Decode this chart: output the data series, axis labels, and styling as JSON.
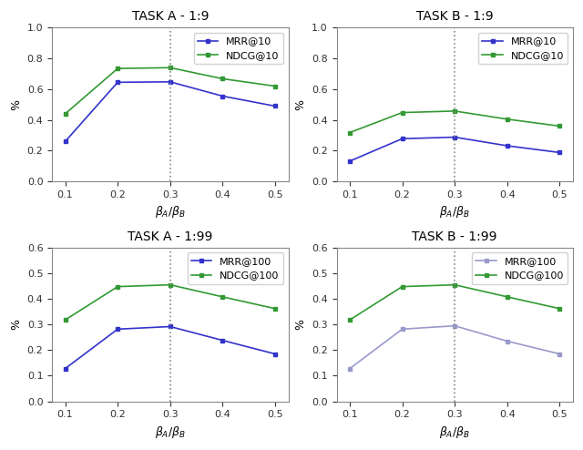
{
  "x": [
    0.1,
    0.2,
    0.3,
    0.4,
    0.5
  ],
  "vline_x": 0.3,
  "subplots": [
    {
      "title": "TASK A - 1:9",
      "ylim": [
        0.0,
        1.0
      ],
      "yticks": [
        0.0,
        0.2,
        0.4,
        0.6,
        0.8,
        1.0
      ],
      "mrr_label": "MRR@10",
      "ndcg_label": "NDCG@10",
      "mrr_color": "#3333cc",
      "ndcg_color": "#339933",
      "mrr_values": [
        0.26,
        0.645,
        0.648,
        0.555,
        0.49
      ],
      "ndcg_values": [
        0.44,
        0.735,
        0.74,
        0.668,
        0.62
      ]
    },
    {
      "title": "TASK B - 1:9",
      "ylim": [
        0.0,
        1.0
      ],
      "yticks": [
        0.0,
        0.2,
        0.4,
        0.6,
        0.8,
        1.0
      ],
      "mrr_label": "MRR@10",
      "ndcg_label": "NDCG@10",
      "mrr_color": "#3333cc",
      "ndcg_color": "#339933",
      "mrr_values": [
        0.132,
        0.278,
        0.288,
        0.232,
        0.188
      ],
      "ndcg_values": [
        0.318,
        0.448,
        0.458,
        0.405,
        0.36
      ]
    },
    {
      "title": "TASK A - 1:99",
      "ylim": [
        0.0,
        0.6
      ],
      "yticks": [
        0.0,
        0.1,
        0.2,
        0.3,
        0.4,
        0.5,
        0.6
      ],
      "mrr_label": "MRR@100",
      "ndcg_label": "NDCG@100",
      "mrr_color": "#3333cc",
      "ndcg_color": "#339933",
      "mrr_values": [
        0.128,
        0.282,
        0.292,
        0.238,
        0.185
      ],
      "ndcg_values": [
        0.318,
        0.448,
        0.455,
        0.408,
        0.362
      ]
    },
    {
      "title": "TASK B - 1:99",
      "ylim": [
        0.0,
        0.6
      ],
      "yticks": [
        0.0,
        0.1,
        0.2,
        0.3,
        0.4,
        0.5,
        0.6
      ],
      "mrr_label": "MRR@100",
      "ndcg_label": "NDCG@100",
      "mrr_color": "#9999cc",
      "ndcg_color": "#339933",
      "mrr_values": [
        0.128,
        0.282,
        0.295,
        0.235,
        0.185
      ],
      "ndcg_values": [
        0.318,
        0.448,
        0.455,
        0.408,
        0.362
      ]
    }
  ],
  "ylabel": "%",
  "marker": "s",
  "markersize": 3,
  "linewidth": 1.2,
  "vline_color": "#888888",
  "vline_style": "dotted",
  "vline_lw": 1.2,
  "bg_color": "#ffffff",
  "title_fontsize": 10,
  "label_fontsize": 9,
  "tick_fontsize": 8,
  "legend_fontsize": 8
}
